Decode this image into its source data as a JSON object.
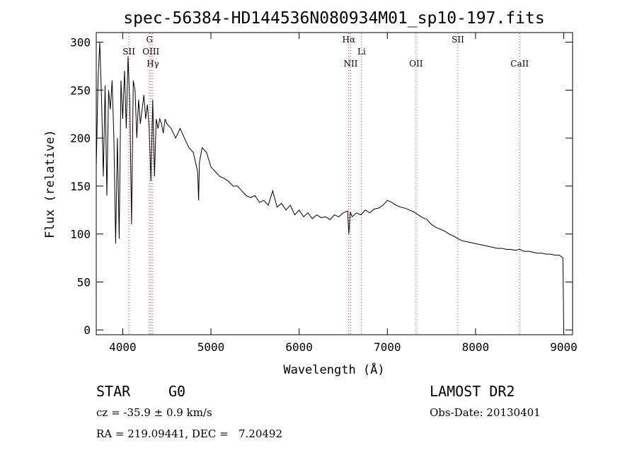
{
  "chart_data": {
    "type": "line",
    "title": "spec-56384-HD144536N080934M01_sp10-197.fits",
    "xlabel": "Wavelength (Å)",
    "ylabel": "Flux (relative)",
    "xlim": [
      3700,
      9100
    ],
    "ylim": [
      -5,
      310
    ],
    "x_ticks": [
      4000,
      5000,
      6000,
      7000,
      8000,
      9000
    ],
    "y_ticks": [
      0,
      50,
      100,
      150,
      200,
      250,
      300
    ],
    "grid": false,
    "legend": "none",
    "line_color": "#000000",
    "marker_color": "#cc3333",
    "lines": [
      {
        "name": "SII",
        "x": 4070
      },
      {
        "name": "G",
        "x": 4304
      },
      {
        "name": "OIII",
        "x": 4320
      },
      {
        "name": "Hγ",
        "x": 4341
      },
      {
        "name": "Hα",
        "x": 6563
      },
      {
        "name": "NII",
        "x": 6584
      },
      {
        "name": "Li",
        "x": 6708
      },
      {
        "name": "OII",
        "x": 7325
      },
      {
        "name": "SII",
        "x": 7800
      },
      {
        "name": "CaII",
        "x": 8500
      }
    ],
    "series": [
      {
        "x": [
          3700,
          3720,
          3740,
          3760,
          3780,
          3800,
          3820,
          3840,
          3860,
          3880,
          3900,
          3920,
          3940,
          3960,
          3980,
          4000,
          4020,
          4040,
          4060,
          4080,
          4100,
          4120,
          4140,
          4160,
          4180,
          4200,
          4220,
          4240,
          4260,
          4280,
          4300,
          4320,
          4340,
          4360,
          4380,
          4400,
          4420,
          4440,
          4460,
          4480,
          4500,
          4550,
          4600,
          4650,
          4700,
          4750,
          4800,
          4850,
          4860,
          4870,
          4900,
          4950,
          5000,
          5050,
          5100,
          5150,
          5200,
          5250,
          5300,
          5350,
          5400,
          5450,
          5500,
          5550,
          5600,
          5650,
          5700,
          5750,
          5800,
          5850,
          5900,
          5950,
          6000,
          6050,
          6100,
          6150,
          6200,
          6250,
          6300,
          6350,
          6400,
          6450,
          6500,
          6550,
          6563,
          6580,
          6600,
          6650,
          6700,
          6750,
          6800,
          6850,
          6900,
          6950,
          7000,
          7050,
          7100,
          7150,
          7200,
          7250,
          7300,
          7350,
          7400,
          7450,
          7500,
          7550,
          7600,
          7650,
          7700,
          7750,
          7800,
          7850,
          7900,
          7950,
          8000,
          8050,
          8100,
          8150,
          8200,
          8250,
          8300,
          8350,
          8400,
          8450,
          8500,
          8550,
          8600,
          8650,
          8700,
          8750,
          8800,
          8850,
          8900,
          8950,
          8990,
          9000
        ],
        "y": [
          170,
          260,
          300,
          240,
          160,
          255,
          140,
          250,
          230,
          260,
          200,
          90,
          200,
          95,
          260,
          220,
          270,
          210,
          285,
          235,
          110,
          260,
          250,
          200,
          240,
          215,
          230,
          245,
          220,
          235,
          210,
          155,
          240,
          160,
          220,
          210,
          220,
          215,
          205,
          220,
          215,
          210,
          200,
          210,
          200,
          190,
          185,
          165,
          135,
          175,
          190,
          185,
          170,
          165,
          160,
          158,
          155,
          150,
          150,
          145,
          140,
          138,
          140,
          133,
          135,
          130,
          145,
          128,
          132,
          125,
          130,
          120,
          125,
          118,
          122,
          116,
          120,
          117,
          118,
          115,
          120,
          118,
          122,
          124,
          100,
          123,
          118,
          122,
          120,
          125,
          122,
          126,
          127,
          130,
          135,
          133,
          130,
          128,
          127,
          125,
          123,
          120,
          117,
          115,
          110,
          107,
          105,
          103,
          100,
          98,
          95,
          93,
          92,
          91,
          90,
          89,
          88,
          87,
          86,
          85,
          85,
          84,
          84,
          83,
          84,
          82,
          82,
          81,
          80,
          80,
          79,
          79,
          78,
          78,
          75,
          0
        ]
      }
    ]
  },
  "info": {
    "object_class": "STAR",
    "subclass": "G0",
    "survey": "LAMOST DR2",
    "redshift": "cz = -35.9 ± 0.9 km/s",
    "obs_date": "Obs-Date: 20130401",
    "coords": "RA = 219.09441, DEC =   7.20492"
  }
}
